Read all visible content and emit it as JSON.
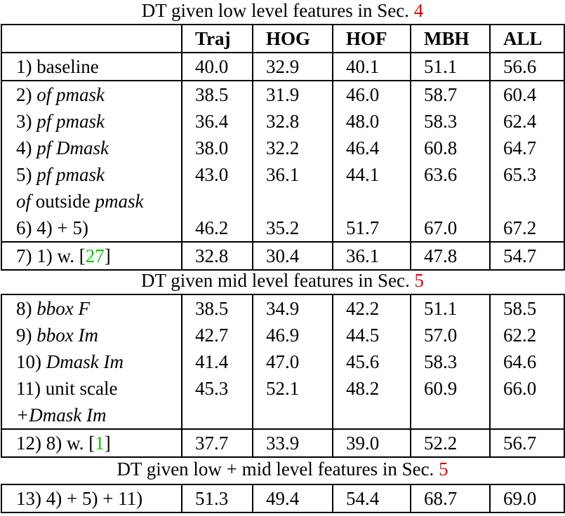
{
  "captions": {
    "low": {
      "text": "DT given low level features in Sec. ",
      "ref": "4"
    },
    "mid": {
      "text": "DT given mid level features in Sec. ",
      "ref": "5"
    },
    "both": {
      "text": "DT given low + mid level features in Sec. ",
      "ref": "5"
    }
  },
  "headers": [
    "",
    "Traj",
    "HOG",
    "HOF",
    "MBH",
    "ALL"
  ],
  "rows": {
    "r1": {
      "label": "1) baseline",
      "values": [
        "40.0",
        "32.9",
        "40.1",
        "51.1",
        "56.6"
      ]
    },
    "r2": {
      "num": "2) ",
      "label": "of pmask",
      "values": [
        "38.5",
        "31.9",
        "46.0",
        "58.7",
        "60.4"
      ]
    },
    "r3": {
      "num": "3) ",
      "label": "pf pmask",
      "values": [
        "36.4",
        "32.8",
        "48.0",
        "58.3",
        "62.4"
      ]
    },
    "r4": {
      "num": "4) ",
      "label": "pf Dmask",
      "values": [
        "38.0",
        "32.2",
        "46.4",
        "60.8",
        "64.7"
      ]
    },
    "r5": {
      "num": "5) ",
      "label": "pf pmask",
      "values": [
        "43.0",
        "36.1",
        "44.1",
        "63.6",
        "65.3"
      ]
    },
    "r5b": {
      "a": "of",
      "b": " outside ",
      "c": "pmask"
    },
    "r6": {
      "label": "6) 4) + 5)",
      "values": [
        "46.2",
        "35.2",
        "51.7",
        "67.0",
        "67.2"
      ]
    },
    "r7": {
      "label": "7) 1) w. [",
      "ref": "27",
      "close": "]",
      "values": [
        "32.8",
        "30.4",
        "36.1",
        "47.8",
        "54.7"
      ]
    },
    "r8": {
      "num": "8) ",
      "label": "bbox F",
      "values": [
        "38.5",
        "34.9",
        "42.2",
        "51.1",
        "58.5"
      ]
    },
    "r9": {
      "num": "9) ",
      "label": "bbox Im",
      "values": [
        "42.7",
        "46.9",
        "44.5",
        "57.0",
        "62.2"
      ]
    },
    "r10": {
      "num": "10) ",
      "label": "Dmask Im",
      "values": [
        "41.4",
        "47.0",
        "45.6",
        "58.3",
        "64.6"
      ]
    },
    "r11": {
      "label": "11) unit scale",
      "values": [
        "45.3",
        "52.1",
        "48.2",
        "60.9",
        "66.0"
      ]
    },
    "r11b": {
      "label": "+Dmask Im"
    },
    "r12": {
      "label": "12) 8) w. [",
      "ref": "1",
      "close": "]",
      "values": [
        "37.7",
        "33.9",
        "39.0",
        "52.2",
        "56.7"
      ]
    },
    "r13": {
      "label": "13) 4) + 5) + 11)",
      "values": [
        "51.3",
        "49.4",
        "54.4",
        "68.7",
        "69.0"
      ]
    }
  }
}
